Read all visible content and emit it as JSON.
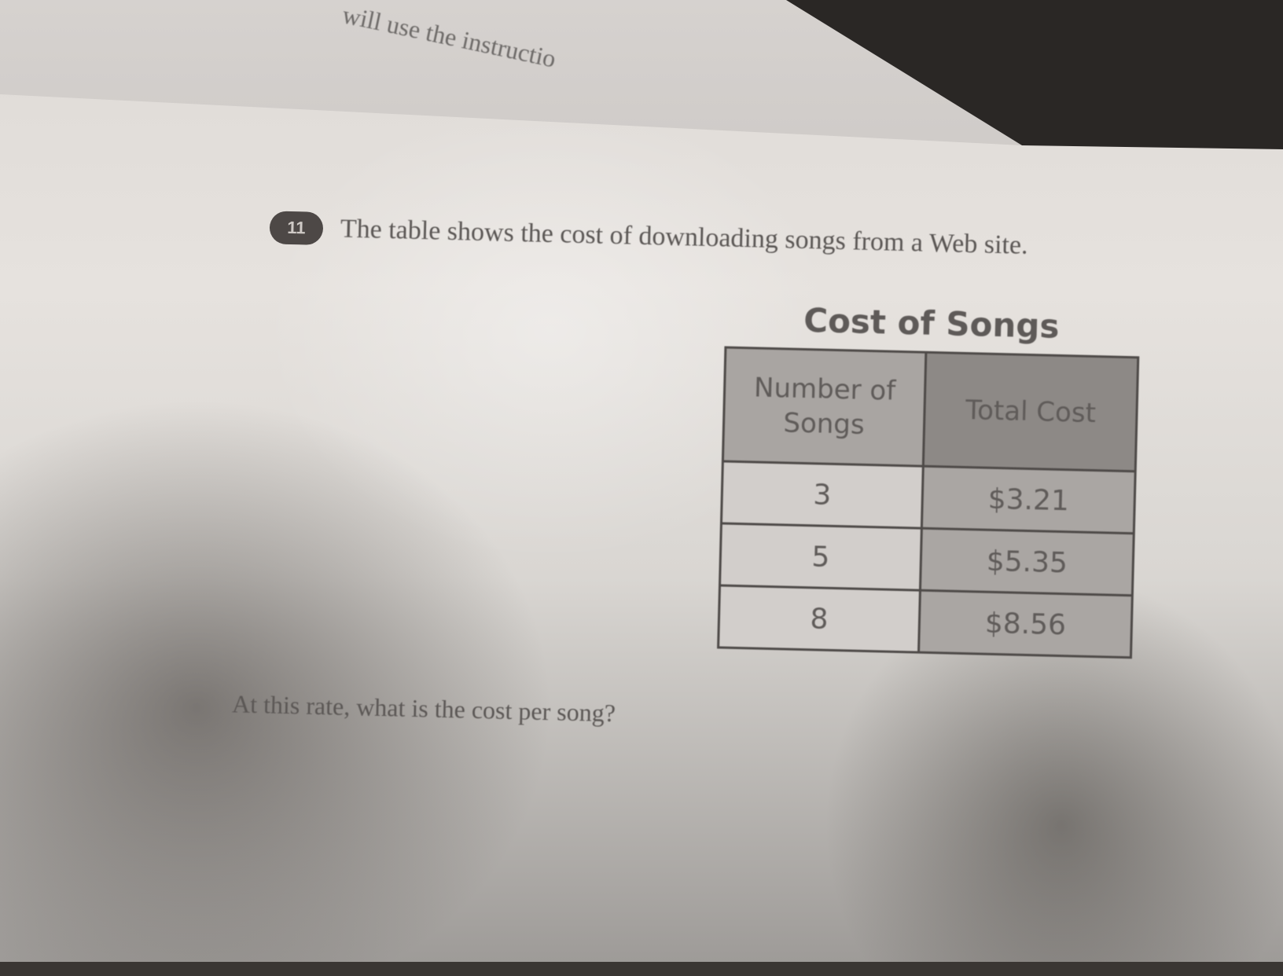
{
  "previous_sheet": {
    "text": "will use the instructio"
  },
  "question": {
    "number": "11",
    "stem": "The table shows the cost of downloading songs from a Web site.",
    "prompt": "At this rate, what is the cost per song?"
  },
  "table": {
    "title": "Cost of Songs",
    "headers": [
      "Number of Songs",
      "Total Cost"
    ],
    "rows": [
      [
        "3",
        "$3.21"
      ],
      [
        "5",
        "$5.35"
      ],
      [
        "8",
        "$8.56"
      ]
    ]
  }
}
